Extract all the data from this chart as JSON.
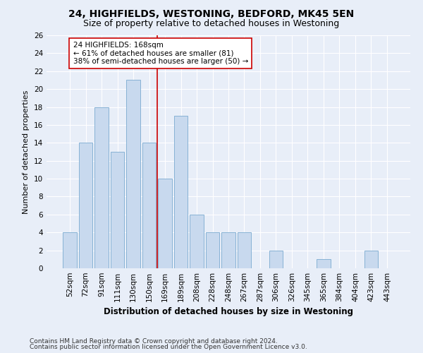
{
  "title1": "24, HIGHFIELDS, WESTONING, BEDFORD, MK45 5EN",
  "title2": "Size of property relative to detached houses in Westoning",
  "xlabel": "Distribution of detached houses by size in Westoning",
  "ylabel": "Number of detached properties",
  "categories": [
    "52sqm",
    "72sqm",
    "91sqm",
    "111sqm",
    "130sqm",
    "150sqm",
    "169sqm",
    "189sqm",
    "208sqm",
    "228sqm",
    "248sqm",
    "267sqm",
    "287sqm",
    "306sqm",
    "326sqm",
    "345sqm",
    "365sqm",
    "384sqm",
    "404sqm",
    "423sqm",
    "443sqm"
  ],
  "values": [
    4,
    14,
    18,
    13,
    21,
    14,
    10,
    17,
    6,
    4,
    4,
    4,
    0,
    2,
    0,
    0,
    1,
    0,
    0,
    2,
    0
  ],
  "bar_color": "#c8d9ee",
  "bar_edge_color": "#7aaad0",
  "vline_index": 6,
  "vline_color": "#cc0000",
  "annotation_line1": "24 HIGHFIELDS: 168sqm",
  "annotation_line2": "← 61% of detached houses are smaller (81)",
  "annotation_line3": "38% of semi-detached houses are larger (50) →",
  "annotation_box_facecolor": "#ffffff",
  "annotation_box_edgecolor": "#cc0000",
  "ylim": [
    0,
    26
  ],
  "yticks": [
    0,
    2,
    4,
    6,
    8,
    10,
    12,
    14,
    16,
    18,
    20,
    22,
    24,
    26
  ],
  "footer1": "Contains HM Land Registry data © Crown copyright and database right 2024.",
  "footer2": "Contains public sector information licensed under the Open Government Licence v3.0.",
  "background_color": "#e8eef8",
  "grid_color": "#ffffff",
  "title1_fontsize": 10,
  "title2_fontsize": 9,
  "xlabel_fontsize": 8.5,
  "ylabel_fontsize": 8,
  "tick_fontsize": 7.5,
  "annotation_fontsize": 7.5,
  "footer_fontsize": 6.5
}
